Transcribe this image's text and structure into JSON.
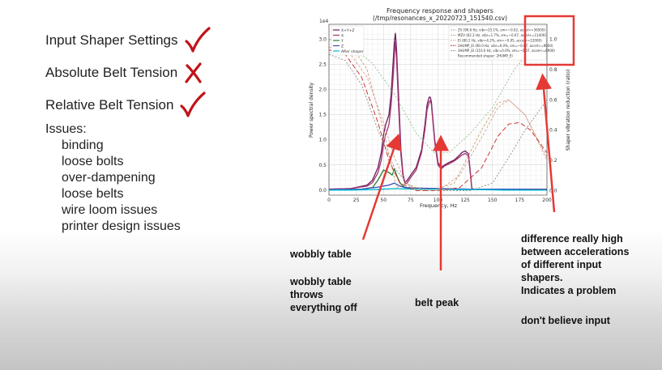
{
  "checklist": [
    {
      "label": "Input Shaper Settings",
      "status": "check"
    },
    {
      "label": "Absolute Belt Tension",
      "status": "cross"
    },
    {
      "label": "Relative Belt Tension",
      "status": "check"
    }
  ],
  "issues": {
    "title": "Issues:",
    "items": [
      "binding",
      "loose bolts",
      "over-dampening",
      "loose belts",
      "wire loom issues",
      "printer design issues"
    ]
  },
  "colors": {
    "check": "#c0141a",
    "arrow": "#e53935",
    "box": "#e53935"
  },
  "notes": {
    "wobbly": "wobbly table",
    "wobbly_throws": [
      "wobbly table",
      "throws",
      "everything off"
    ],
    "belt_peak": "belt peak",
    "difference": [
      "difference really high",
      "between accelerations",
      "of different input",
      "shapers.",
      "Indicates a problem"
    ],
    "dont_believe": "don't believe input"
  },
  "chart_data": {
    "type": "line",
    "title": "Frequency response and shapers",
    "subtitle": "(/tmp/resonances_x_20220723_151540.csv)",
    "xlabel": "Frequency, Hz",
    "ylabel": "Power spectral density",
    "ylabel_right": "Shaper vibration reduction (ratio)",
    "y_multiplier": "1e4",
    "xlim": [
      0,
      200
    ],
    "ylim": [
      -0.1,
      3.3
    ],
    "ylim_right": [
      -0.03,
      1.1
    ],
    "x_ticks": [
      "0",
      "25",
      "50",
      "75",
      "100",
      "125",
      "150",
      "175",
      "200"
    ],
    "y_ticks": [
      "0.0",
      "0.5",
      "1.0",
      "1.5",
      "2.0",
      "2.5",
      "3.0"
    ],
    "y_ticks_right": [
      "0.0",
      "0.2",
      "0.4",
      "0.6",
      "0.8",
      "1.0"
    ],
    "grid": true,
    "legend_left": [
      "X+Y+Z",
      "X",
      "Y",
      "Z",
      "After shaper"
    ],
    "legend_right": [
      "ZV (96.6 Hz, vibr=25.1%, sm=~0.02, accel<=36500)",
      "MZV (62.2 Hz, vibr=1.7%, sm=~0.07, accel<=11400)",
      "EI (80.2 Hz, vibr=4.2%, sm=~0.05, accel<=12000)",
      "2HUMP_EI (90.0 Hz, vibr=0.0%, sm=~0.07, accel<=9000)",
      "3HUMP_EI (110.0 Hz, vibr=0.0%, sm=~0.07, accel<=8900)",
      "Recommended shaper: 2HUMP_EI"
    ],
    "series": [
      {
        "name": "X+Y+Z",
        "axis": "left",
        "color": "#6a1b5a",
        "x": [
          0,
          20,
          35,
          40,
          45,
          48,
          50,
          52,
          55,
          57,
          59,
          60,
          61,
          62,
          64,
          66,
          68,
          70,
          72,
          75,
          80,
          85,
          88,
          90,
          92,
          93,
          94,
          95,
          97,
          100,
          103,
          106,
          110,
          115,
          120,
          122,
          125,
          128,
          130,
          131,
          132,
          135,
          140,
          160,
          180,
          200
        ],
        "y": [
          0.02,
          0.03,
          0.1,
          0.2,
          0.45,
          0.75,
          1.1,
          1.3,
          1.5,
          1.9,
          2.6,
          2.95,
          3.12,
          2.8,
          1.8,
          0.8,
          0.3,
          0.15,
          0.2,
          0.3,
          0.45,
          0.8,
          1.3,
          1.7,
          1.85,
          1.85,
          1.75,
          1.5,
          1.0,
          0.55,
          0.45,
          0.5,
          0.55,
          0.6,
          0.7,
          0.75,
          0.78,
          0.72,
          0.3,
          0.05,
          0.02,
          0.02,
          0.02,
          0.02,
          0.02,
          0.02
        ]
      },
      {
        "name": "X",
        "axis": "left",
        "color": "#a3336e",
        "x": [
          0,
          20,
          35,
          40,
          45,
          48,
          50,
          52,
          55,
          57,
          59,
          60,
          61,
          62,
          64,
          66,
          68,
          70,
          72,
          75,
          80,
          85,
          88,
          90,
          92,
          93,
          94,
          95,
          97,
          100,
          103,
          106,
          110,
          115,
          120,
          122,
          125,
          128,
          130,
          131,
          132,
          135,
          140,
          160,
          180,
          200
        ],
        "y": [
          0.02,
          0.03,
          0.08,
          0.15,
          0.35,
          0.6,
          0.9,
          1.1,
          1.3,
          1.7,
          2.3,
          2.7,
          2.95,
          2.6,
          1.6,
          0.7,
          0.25,
          0.12,
          0.15,
          0.25,
          0.4,
          0.75,
          1.2,
          1.6,
          1.75,
          1.78,
          1.7,
          1.45,
          0.95,
          0.5,
          0.42,
          0.48,
          0.52,
          0.58,
          0.66,
          0.7,
          0.73,
          0.68,
          0.28,
          0.04,
          0.02,
          0.02,
          0.02,
          0.02,
          0.02,
          0.02
        ]
      },
      {
        "name": "Y",
        "axis": "left",
        "color": "#2e7d32",
        "x": [
          0,
          30,
          40,
          45,
          50,
          55,
          58,
          60,
          62,
          65,
          68,
          70,
          75,
          80,
          90,
          100,
          120,
          150,
          200
        ],
        "y": [
          0.01,
          0.02,
          0.05,
          0.2,
          0.4,
          0.35,
          0.3,
          0.42,
          0.3,
          0.15,
          0.08,
          0.05,
          0.03,
          0.04,
          0.03,
          0.03,
          0.02,
          0.02,
          0.01
        ]
      },
      {
        "name": "Z",
        "axis": "left",
        "color": "#3b4cc0",
        "x": [
          0,
          30,
          45,
          55,
          60,
          65,
          70,
          80,
          100,
          130,
          160,
          200
        ],
        "y": [
          0.01,
          0.02,
          0.06,
          0.1,
          0.14,
          0.08,
          0.05,
          0.04,
          0.03,
          0.02,
          0.02,
          0.01
        ]
      },
      {
        "name": "After shaper",
        "axis": "left",
        "color": "#00bcd4",
        "x": [
          0,
          20,
          40,
          60,
          80,
          100,
          120,
          140,
          160,
          180,
          200
        ],
        "y": [
          0.0,
          0.0,
          0.01,
          0.03,
          0.02,
          0.02,
          0.01,
          0.01,
          0.0,
          0.0,
          0.0
        ]
      },
      {
        "name": "ZV",
        "axis": "right",
        "color": "#8fbf8f",
        "dash": "2,2",
        "x": [
          0,
          20,
          40,
          60,
          80,
          96.6,
          110,
          130,
          150,
          170,
          193,
          200
        ],
        "y": [
          1.0,
          0.96,
          0.84,
          0.64,
          0.38,
          0.25,
          0.25,
          0.38,
          0.55,
          0.8,
          1.0,
          0.99
        ]
      },
      {
        "name": "MZV",
        "axis": "right",
        "color": "#c8a070",
        "dash": "3,2",
        "x": [
          0,
          20,
          35,
          50,
          62,
          70,
          80,
          95,
          115,
          140,
          155,
          165,
          180,
          200
        ],
        "y": [
          1.0,
          0.97,
          0.8,
          0.4,
          0.02,
          0.05,
          0.02,
          0.0,
          0.05,
          0.4,
          0.58,
          0.6,
          0.5,
          0.22
        ]
      },
      {
        "name": "EI",
        "axis": "right",
        "color": "#d9a0a0",
        "dash": "3,2",
        "x": [
          0,
          20,
          35,
          50,
          60,
          70,
          80,
          100,
          120,
          140,
          155,
          165,
          180,
          200
        ],
        "y": [
          0.95,
          0.9,
          0.75,
          0.45,
          0.22,
          0.06,
          0.0,
          0.0,
          0.1,
          0.35,
          0.55,
          0.6,
          0.5,
          0.2
        ]
      },
      {
        "name": "2HUMP_EI",
        "axis": "right",
        "color": "#c62828",
        "dash": "6,3",
        "x": [
          0,
          15,
          30,
          45,
          55,
          65,
          80,
          90,
          100,
          120,
          140,
          155,
          165,
          175,
          185,
          200
        ],
        "y": [
          0.93,
          0.9,
          0.75,
          0.45,
          0.2,
          0.05,
          0.0,
          0.0,
          0.0,
          0.02,
          0.15,
          0.36,
          0.44,
          0.45,
          0.4,
          0.25
        ]
      },
      {
        "name": "3HUMP_EI",
        "axis": "right",
        "color": "#8e8e8e",
        "dash": "2,2",
        "x": [
          0,
          15,
          30,
          45,
          60,
          75,
          90,
          110,
          130,
          150,
          165,
          180,
          200
        ],
        "y": [
          0.9,
          0.86,
          0.7,
          0.4,
          0.15,
          0.02,
          0.0,
          0.0,
          0.0,
          0.05,
          0.22,
          0.4,
          0.6
        ]
      }
    ]
  }
}
